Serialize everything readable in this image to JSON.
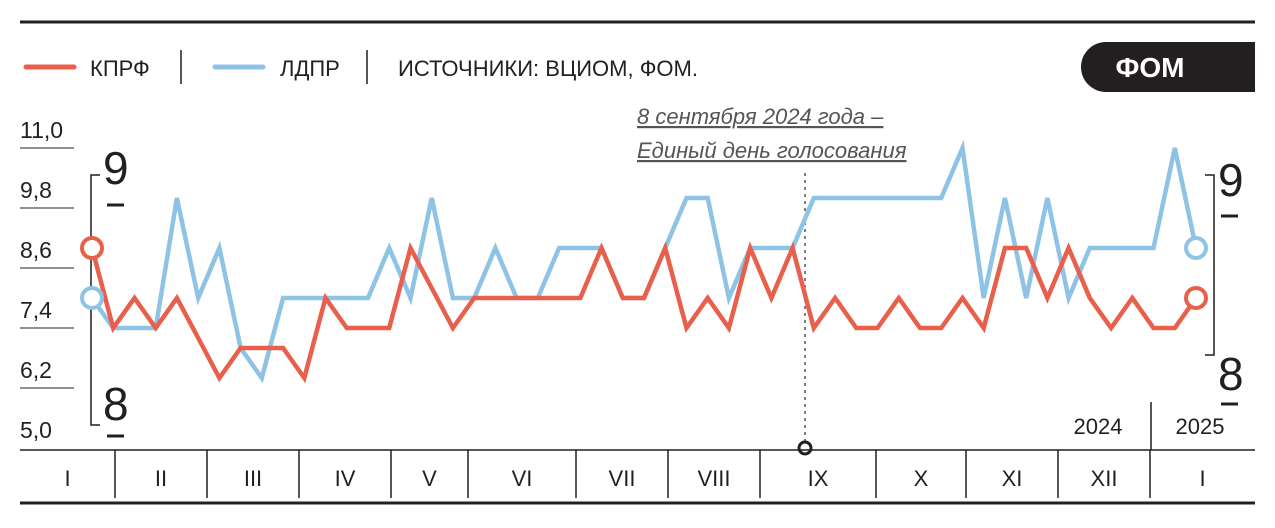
{
  "legend": {
    "kprf_label": "КПРФ",
    "ldpr_label": "ЛДПР",
    "source": "ИСТОЧНИКИ: ВЦИОМ, ФОМ."
  },
  "badge": "ФОМ",
  "annotation": {
    "line1": "8 сентября 2024 года –",
    "line2": "Единый день голосования"
  },
  "start_labels": {
    "upper": "9",
    "lower": "8"
  },
  "end_labels": {
    "upper": "9",
    "lower": "8"
  },
  "years": [
    "2024",
    "2025"
  ],
  "months": [
    "I",
    "II",
    "III",
    "IV",
    "V",
    "VI",
    "VII",
    "VIII",
    "IX",
    "X",
    "XI",
    "XII",
    "I"
  ],
  "colors": {
    "kprf": "#e8604c",
    "ldpr": "#8fc3e6",
    "text": "#231f20",
    "badge_bg": "#231f20"
  },
  "chart_data": {
    "type": "line",
    "title": "",
    "xlabel": "",
    "ylabel": "",
    "ylim": [
      5.0,
      11.0
    ],
    "yticks": [
      "11,0",
      "9,8",
      "8,6",
      "7,4",
      "6,2",
      "5,0"
    ],
    "x": [
      1,
      2,
      3,
      4,
      5,
      6,
      7,
      8,
      9,
      10,
      11,
      12,
      13,
      14,
      15,
      16,
      17,
      18,
      19,
      20,
      21,
      22,
      23,
      24,
      25,
      26,
      27,
      28,
      29,
      30,
      31,
      32,
      33,
      34,
      35,
      36,
      37,
      38,
      39,
      40,
      41,
      42,
      43,
      44,
      45,
      46,
      47,
      48,
      49,
      50,
      51,
      52,
      53
    ],
    "series": [
      {
        "name": "КПРФ",
        "values": [
          8.6,
          7.0,
          7.6,
          7.0,
          7.6,
          6.8,
          6.0,
          6.6,
          6.6,
          6.6,
          6.0,
          7.6,
          7.0,
          7.0,
          7.0,
          8.6,
          7.8,
          7.0,
          7.6,
          7.6,
          7.6,
          7.6,
          7.6,
          7.6,
          8.6,
          7.6,
          7.6,
          8.6,
          7.0,
          7.6,
          7.0,
          8.6,
          7.6,
          8.6,
          7.0,
          7.6,
          7.0,
          7.0,
          7.6,
          7.0,
          7.0,
          7.6,
          7.0,
          8.6,
          8.6,
          7.6,
          8.6,
          7.6,
          7.0,
          7.6,
          7.0,
          7.0,
          7.6
        ]
      },
      {
        "name": "ЛДПР",
        "values": [
          7.6,
          7.0,
          7.0,
          7.0,
          9.6,
          7.6,
          8.6,
          6.6,
          6.0,
          7.6,
          7.6,
          7.6,
          7.6,
          7.6,
          8.6,
          7.6,
          9.6,
          7.6,
          7.6,
          8.6,
          7.6,
          7.6,
          8.6,
          8.6,
          8.6,
          7.6,
          7.6,
          8.6,
          9.6,
          9.6,
          7.6,
          8.6,
          8.6,
          8.6,
          9.6,
          9.6,
          9.6,
          9.6,
          9.6,
          9.6,
          9.6,
          10.6,
          7.6,
          9.6,
          7.6,
          9.6,
          7.6,
          8.6,
          8.6,
          8.6,
          8.6,
          10.6,
          8.6
        ]
      }
    ]
  }
}
